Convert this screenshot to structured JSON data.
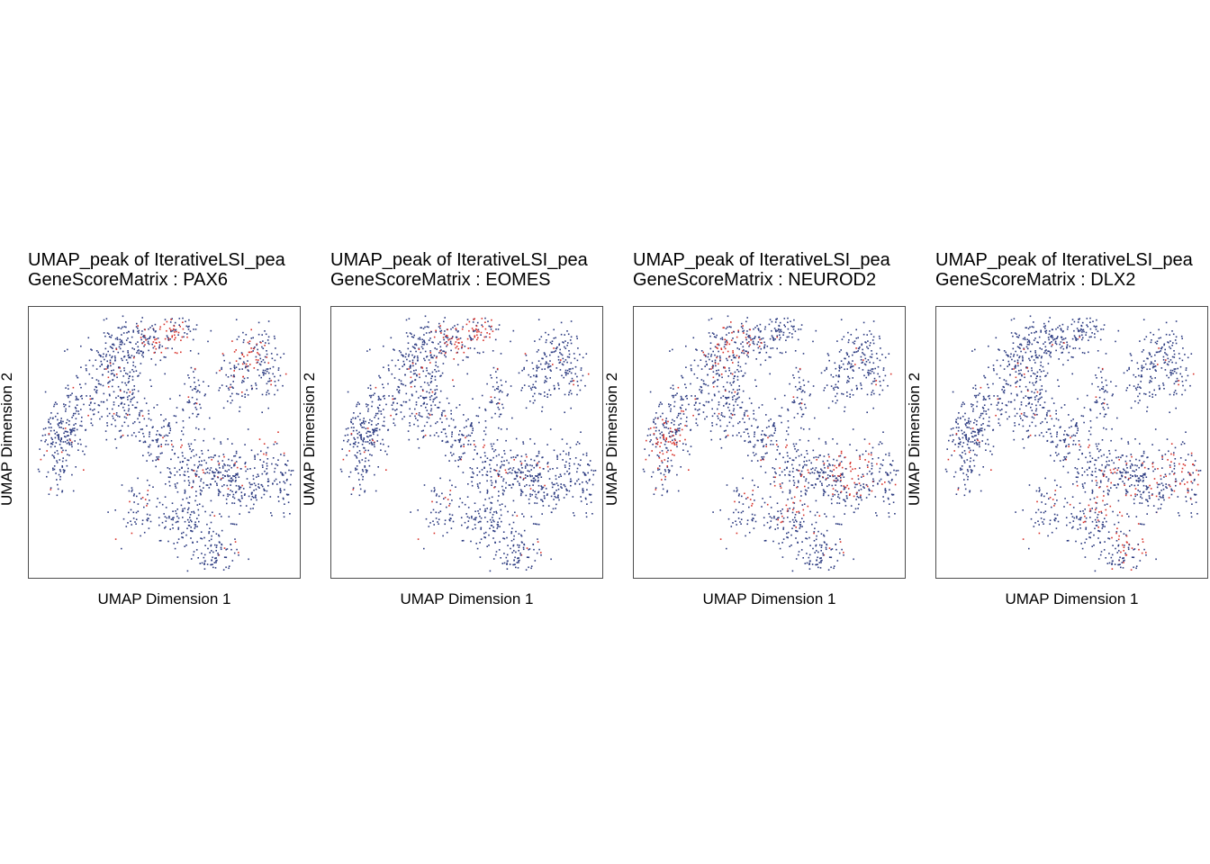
{
  "chart_data": [
    {
      "type": "scatter",
      "title_line1": "UMAP_peak of IterativeLSI_pea",
      "title_line2": "GeneScoreMatrix : PAX6",
      "xlabel": "UMAP Dimension 1",
      "ylabel": "UMAP Dimension 2",
      "gene": "PAX6",
      "low_color": "#2b3a80",
      "high_color": "#d7312a",
      "high_regions": [
        [
          0.78,
          0.82
        ],
        [
          0.93,
          0.55
        ],
        [
          0.52,
          0.88
        ]
      ]
    },
    {
      "type": "scatter",
      "title_line1": "UMAP_peak of IterativeLSI_pea",
      "title_line2": "GeneScoreMatrix : EOMES",
      "xlabel": "UMAP Dimension 1",
      "ylabel": "UMAP Dimension 2",
      "gene": "EOMES",
      "low_color": "#2b3a80",
      "high_color": "#d7312a",
      "high_regions": [
        [
          0.55,
          0.93
        ],
        [
          0.45,
          0.85
        ]
      ]
    },
    {
      "type": "scatter",
      "title_line1": "UMAP_peak of IterativeLSI_pea",
      "title_line2": "GeneScoreMatrix : NEUROD2",
      "xlabel": "UMAP Dimension 1",
      "ylabel": "UMAP Dimension 2",
      "gene": "NEUROD2",
      "low_color": "#2b3a80",
      "high_color": "#d7312a",
      "high_regions": [
        [
          0.12,
          0.5
        ],
        [
          0.35,
          0.85
        ],
        [
          0.55,
          0.3
        ],
        [
          0.8,
          0.4
        ]
      ]
    },
    {
      "type": "scatter",
      "title_line1": "UMAP_peak of IterativeLSI_pea",
      "title_line2": "GeneScoreMatrix : DLX2",
      "xlabel": "UMAP Dimension 1",
      "ylabel": "UMAP Dimension 2",
      "gene": "DLX2",
      "low_color": "#2b3a80",
      "high_color": "#d7312a",
      "high_regions": [
        [
          0.72,
          0.15
        ],
        [
          0.9,
          0.4
        ],
        [
          0.6,
          0.3
        ]
      ]
    }
  ]
}
